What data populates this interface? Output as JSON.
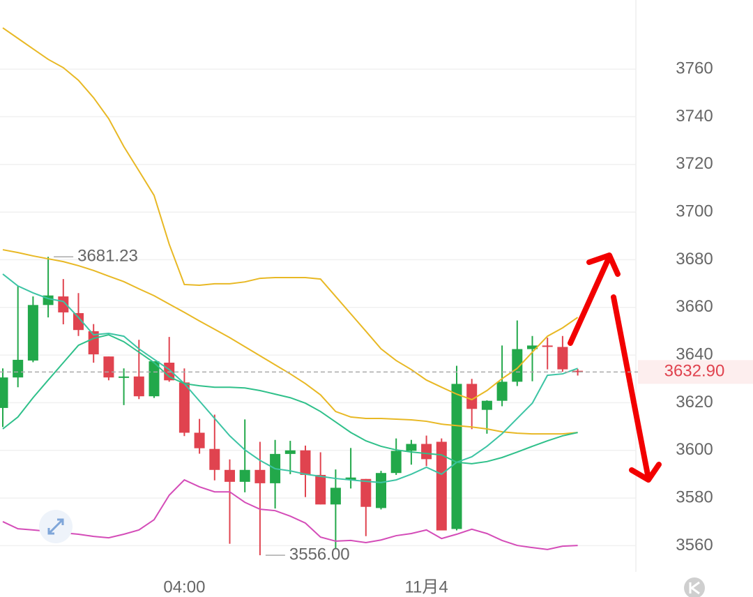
{
  "chart_data": {
    "type": "candlestick",
    "categories": [
      null,
      null,
      null,
      null,
      null,
      null,
      null,
      null,
      null,
      null,
      null,
      null,
      "04:00",
      null,
      null,
      null,
      null,
      null,
      null,
      null,
      null,
      null,
      null,
      null,
      null,
      null,
      null,
      null,
      "11月4",
      null,
      null,
      null,
      null,
      null,
      null,
      null,
      null,
      null,
      null
    ],
    "open": [
      3617.8,
      3630.6,
      3637.7,
      3661,
      3664.6,
      3657.6,
      3650,
      3639.4,
      3631,
      3631,
      3622.7,
      3636.8,
      3628.5,
      3607.4,
      3600.6,
      3591.8,
      3586.8,
      3591.8,
      3586.2,
      3598.5,
      3600,
      3589.7,
      3577.3,
      3587.5,
      3588,
      3575.8,
      3590.5,
      3599.8,
      3602.7,
      3603.6,
      3567,
      3627.9,
      3617,
      3620.8,
      3628.8,
      3642.5,
      3644,
      3643.4,
      3633.4
    ],
    "high": [
      3634.4,
      3669,
      3664.6,
      3681.23,
      3671.9,
      3666,
      3653,
      3639.4,
      3634.4,
      3646.4,
      3637.4,
      3647.6,
      3634.4,
      3613.2,
      3615,
      3596.2,
      3613,
      3603.6,
      3604.4,
      3604,
      3602,
      3599.2,
      3592,
      3601,
      3588,
      3591.4,
      3605,
      3604.4,
      3606.2,
      3605,
      3635.5,
      3630,
      3621,
      3644,
      3654.5,
      3648,
      3647.3,
      3648,
      3634.2
    ],
    "low": [
      3609.8,
      3626.5,
      3637,
      3655.8,
      3652.9,
      3648,
      3636.8,
      3629.4,
      3619,
      3621.5,
      3622,
      3628.8,
      3606,
      3598.6,
      3587.4,
      3560.8,
      3582.4,
      3556,
      3575.6,
      3590,
      3580.4,
      3577.3,
      3558.6,
      3584,
      3564,
      3575.2,
      3589.7,
      3594,
      3593.4,
      3566.4,
      3566.4,
      3608.9,
      3607,
      3618.5,
      3627,
      3629,
      3634,
      3633,
      3631.4
    ],
    "close": [
      3630.6,
      3638,
      3661,
      3665,
      3657.9,
      3650.5,
      3640.3,
      3630.6,
      3631,
      3622.7,
      3637.4,
      3629.4,
      3607.4,
      3600.9,
      3591.8,
      3586.8,
      3591.8,
      3586.2,
      3598.5,
      3600,
      3589.7,
      3577.3,
      3584.3,
      3588.6,
      3576.3,
      3590.5,
      3599.8,
      3602.7,
      3596.3,
      3566.4,
      3627.9,
      3617.4,
      3620.8,
      3628.8,
      3642.5,
      3644,
      3643.5,
      3634,
      3632.9
    ],
    "up_color": "#22a84a",
    "down_color": "#e0434f",
    "lines": [
      {
        "color": "#e8b824",
        "values": [
          3777.3,
          3772.9,
          3768.5,
          3764.1,
          3760.6,
          3755.3,
          3748,
          3739.2,
          3727.5,
          3717.3,
          3707,
          3686.5,
          3669.6,
          3669.3,
          3669.9,
          3669.9,
          3670.7,
          3672.2,
          3672.5,
          3672.5,
          3672.5,
          3671.9,
          3664.6,
          3657.3,
          3650,
          3642.6,
          3637.7,
          3633.9,
          3629.5,
          3626.5,
          3623.6,
          3621.3,
          3625.1,
          3630.1,
          3634.4,
          3641.2,
          3647.9,
          3651.4,
          3655.8
        ]
      },
      {
        "color": "#e8b824",
        "values": [
          3684.2,
          3683,
          3681.6,
          3680.4,
          3679.2,
          3677.5,
          3675.5,
          3673.1,
          3670.8,
          3667.8,
          3664.9,
          3661.4,
          3657.9,
          3654.3,
          3650.8,
          3647.3,
          3643.5,
          3639.7,
          3635.9,
          3632.1,
          3628,
          3623.3,
          3616.3,
          3614,
          3613.4,
          3613.4,
          3613.1,
          3612.8,
          3612.2,
          3611,
          3610.4,
          3609.8,
          3609,
          3607.8,
          3607.2,
          3606.9,
          3606.9,
          3606.9,
          3607.5
        ]
      },
      {
        "color": "#3cc4a4",
        "values": [
          3674,
          3669,
          3666.1,
          3663.7,
          3662.5,
          3655.8,
          3648.5,
          3649.1,
          3647.9,
          3642.6,
          3638.2,
          3633.9,
          3628,
          3620.7,
          3613.4,
          3606.1,
          3600.2,
          3595.8,
          3592.3,
          3591.4,
          3590,
          3589.1,
          3588.2,
          3587.6,
          3587,
          3586.5,
          3587.6,
          3590,
          3592.9,
          3590,
          3595,
          3597.3,
          3601.7,
          3607,
          3613.4,
          3619.8,
          3631.5,
          3632.1,
          3634.4
        ]
      },
      {
        "color": "#2fc08a",
        "values": [
          3609,
          3614,
          3622.1,
          3629.5,
          3636.8,
          3644.1,
          3647,
          3648.5,
          3645.6,
          3641.2,
          3636.8,
          3630.9,
          3628,
          3627.1,
          3626.5,
          3626.5,
          3626.2,
          3625.1,
          3623.6,
          3622.1,
          3619.8,
          3616.3,
          3611.9,
          3607.5,
          3604,
          3601.7,
          3600.2,
          3599.3,
          3598.7,
          3598.1,
          3595,
          3594.4,
          3595.3,
          3597,
          3599.3,
          3601.7,
          3604,
          3606.1,
          3607.5
        ]
      },
      {
        "color": "#d44cb8",
        "values": [
          3570.1,
          3567.1,
          3566.6,
          3566,
          3565.4,
          3564.8,
          3563.9,
          3563.3,
          3564.8,
          3566.6,
          3570.9,
          3581.2,
          3587.6,
          3584.7,
          3582.6,
          3582.6,
          3578.2,
          3575.3,
          3574.7,
          3572.4,
          3569.5,
          3563.6,
          3561.9,
          3562.2,
          3561.3,
          3562.4,
          3564.2,
          3565.1,
          3566.6,
          3563,
          3564.8,
          3566.9,
          3565.1,
          3562.2,
          3560.1,
          3559.2,
          3558.4,
          3559.8,
          3560.1
        ]
      }
    ],
    "max_label": "3681.23",
    "min_label": "3556.00",
    "last_price_label": "3632.90",
    "ylim": [
      3549,
      3789
    ],
    "yticks": [
      3560,
      3580,
      3600,
      3620,
      3640,
      3660,
      3680,
      3700,
      3720,
      3740,
      3760
    ],
    "grid": true
  }
}
